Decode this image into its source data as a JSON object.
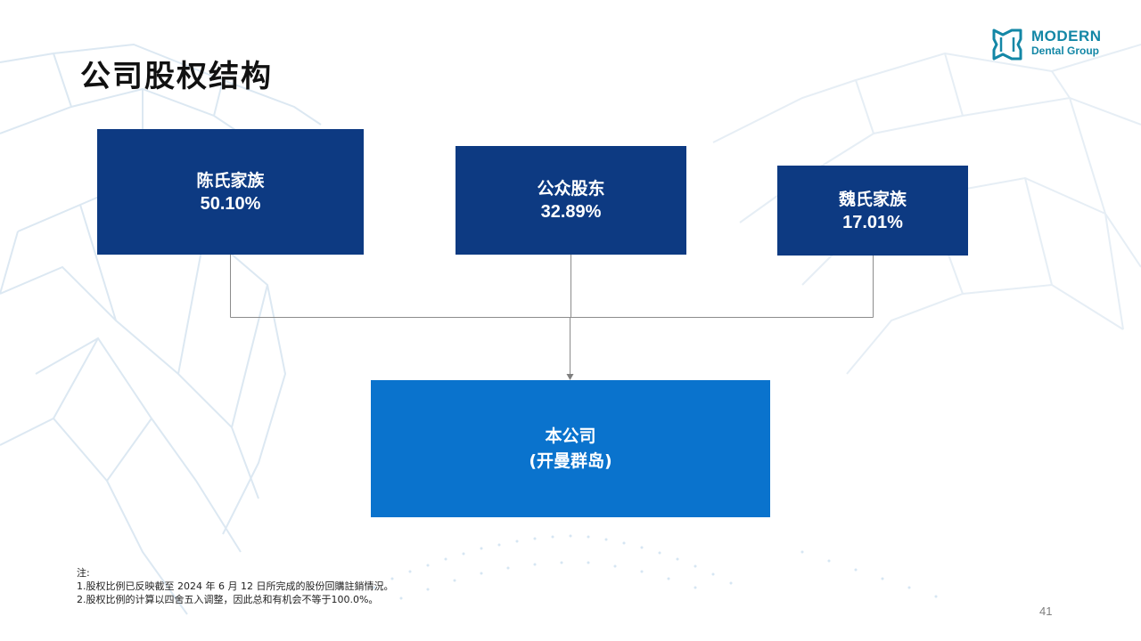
{
  "slide": {
    "title": "公司股权结构",
    "page_number": "41"
  },
  "logo": {
    "line1": "MODERN",
    "line2": "Dental Group",
    "color": "#1387a6"
  },
  "shareholders": [
    {
      "name": "陈氏家族",
      "percent": "50.10%"
    },
    {
      "name": "公众股东",
      "percent": "32.89%"
    },
    {
      "name": "魏氏家族",
      "percent": "17.01%"
    }
  ],
  "company": {
    "name": "本公司",
    "jurisdiction": "(开曼群岛)"
  },
  "notes": {
    "heading": "注:",
    "items": [
      "1.股权比例已反映截至 2024 年 6 月 12 日所完成的股份回購註銷情況。",
      "2.股权比例的计算以四舍五入调整，因此总和有机会不等于100.0%。"
    ]
  },
  "colors": {
    "shareholder_box": "#0d3a82",
    "company_box": "#0a73cd",
    "connector": "#8c8c8c"
  }
}
